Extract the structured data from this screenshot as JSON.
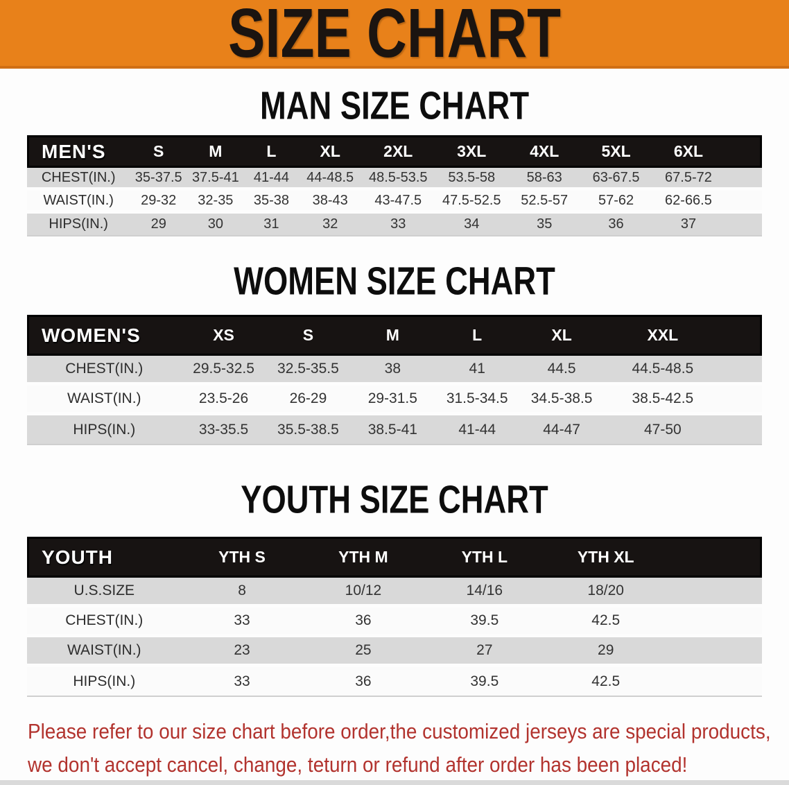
{
  "banner": {
    "title": "SIZE CHART",
    "bg_color": "#e8811a",
    "text_color": "#1b1410"
  },
  "sections": [
    {
      "heading": "MAN SIZE CHART",
      "table": {
        "corner_label": "MEN'S",
        "columns": [
          "S",
          "M",
          "L",
          "XL",
          "2XL",
          "3XL",
          "4XL",
          "5XL",
          "6XL"
        ],
        "rows": [
          {
            "label": "CHEST(IN.)",
            "values": [
              "35-37.5",
              "37.5-41",
              "41-44",
              "44-48.5",
              "48.5-53.5",
              "53.5-58",
              "58-63",
              "63-67.5",
              "67.5-72"
            ]
          },
          {
            "label": "WAIST(IN.)",
            "values": [
              "29-32",
              "32-35",
              "35-38",
              "38-43",
              "43-47.5",
              "47.5-52.5",
              "52.5-57",
              "57-62",
              "62-66.5"
            ]
          },
          {
            "label": "HIPS(IN.)",
            "values": [
              "29",
              "30",
              "31",
              "32",
              "33",
              "34",
              "35",
              "36",
              "37"
            ]
          }
        ]
      }
    },
    {
      "heading": "WOMEN SIZE CHART",
      "table": {
        "corner_label": "WOMEN'S",
        "columns": [
          "XS",
          "S",
          "M",
          "L",
          "XL",
          "XXL"
        ],
        "rows": [
          {
            "label": "CHEST(IN.)",
            "values": [
              "29.5-32.5",
              "32.5-35.5",
              "38",
              "41",
              "44.5",
              "44.5-48.5"
            ]
          },
          {
            "label": "WAIST(IN.)",
            "values": [
              "23.5-26",
              "26-29",
              "29-31.5",
              "31.5-34.5",
              "34.5-38.5",
              "38.5-42.5"
            ]
          },
          {
            "label": "HIPS(IN.)",
            "values": [
              "33-35.5",
              "35.5-38.5",
              "38.5-41",
              "41-44",
              "44-47",
              "47-50"
            ]
          }
        ]
      }
    },
    {
      "heading": "YOUTH SIZE CHART",
      "table": {
        "corner_label": "YOUTH",
        "columns": [
          "YTH S",
          "YTH M",
          "YTH L",
          "YTH XL"
        ],
        "rows": [
          {
            "label": "U.S.SIZE",
            "values": [
              "8",
              "10/12",
              "14/16",
              "18/20"
            ]
          },
          {
            "label": "CHEST(IN.)",
            "values": [
              "33",
              "36",
              "39.5",
              "42.5"
            ]
          },
          {
            "label": "WAIST(IN.)",
            "values": [
              "23",
              "25",
              "27",
              "29"
            ]
          },
          {
            "label": "HIPS(IN.)",
            "values": [
              "33",
              "36",
              "39.5",
              "42.5"
            ]
          }
        ]
      }
    }
  ],
  "disclaimer": {
    "line1": "Please refer to our size chart before order,the customized jerseys are special products,",
    "line2": "we don't accept cancel, change, teturn or refund after order has been placed!",
    "text_color": "#b2332e"
  }
}
